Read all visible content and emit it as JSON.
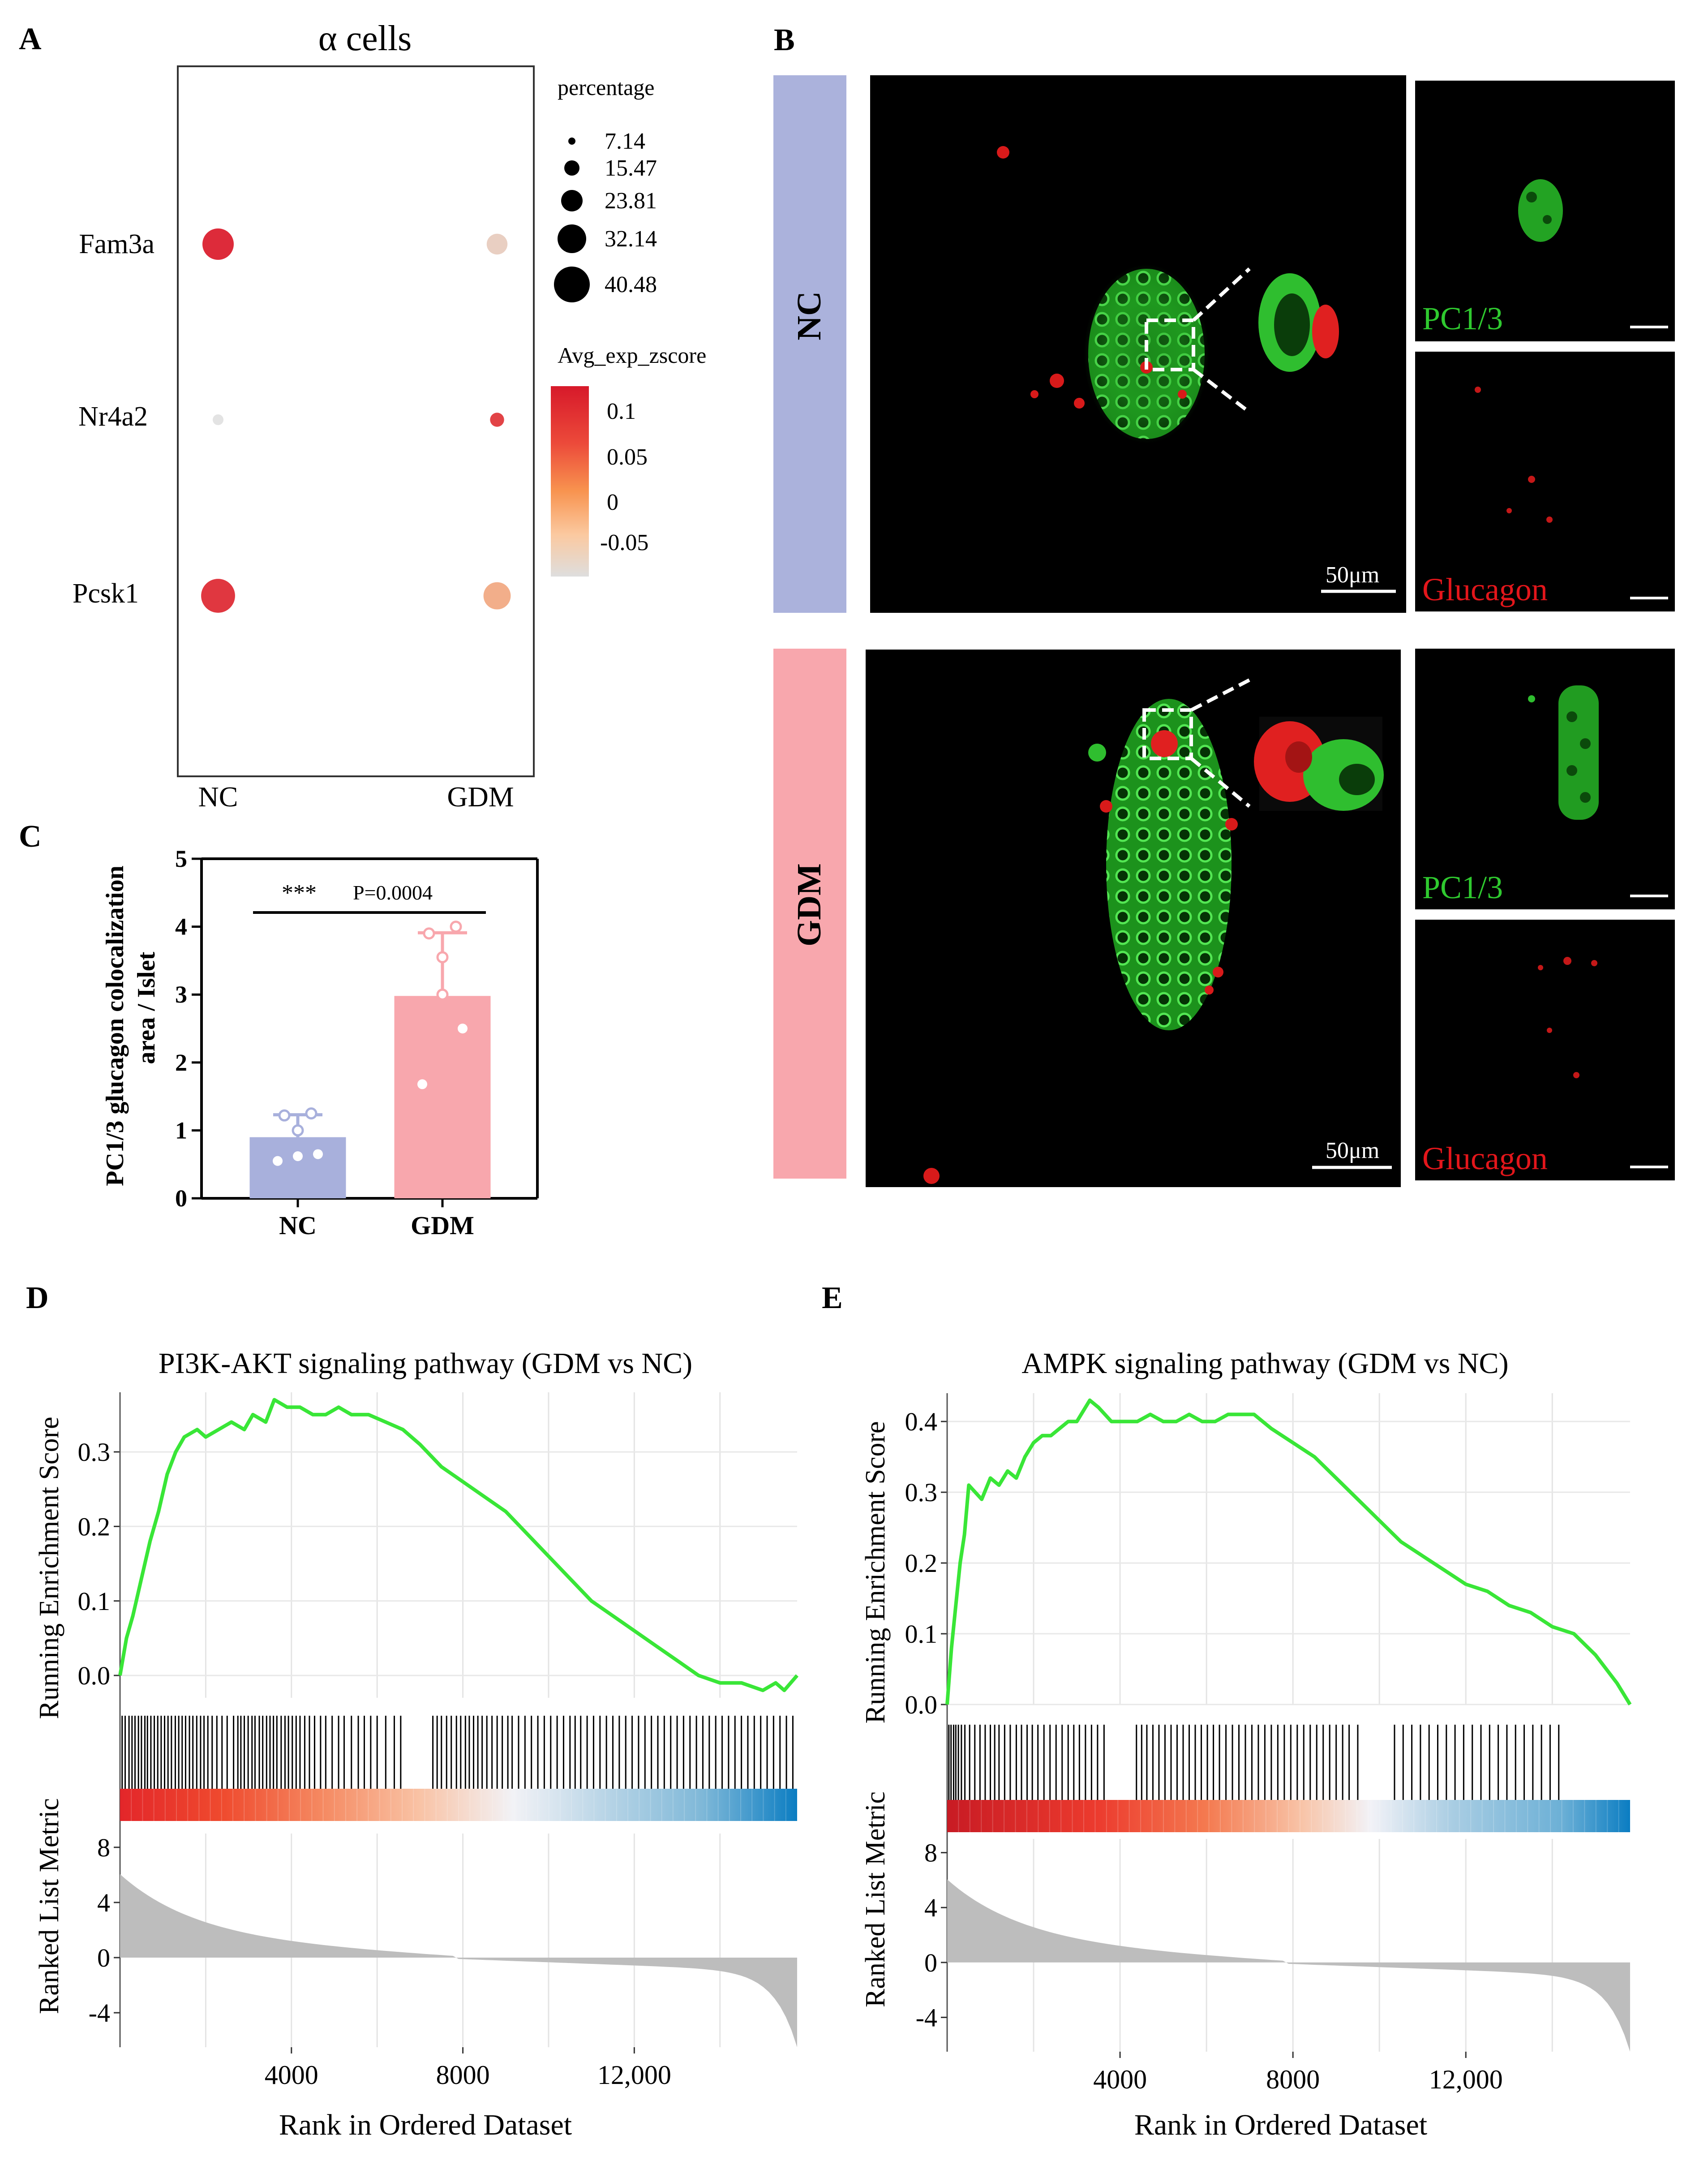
{
  "colors": {
    "dot_high": "#dd2b3a",
    "dot_mid": "#f6a174",
    "dot_low": "#e3e3e3",
    "nc_bar": "#a8b0dc",
    "gdm_bar": "#f8a7ad",
    "gsea_line": "#39e637",
    "green_stain": "#2fc92f",
    "red_stain": "#d81a1a",
    "heat_red": "#d7191c",
    "heat_blue": "#2b83ba"
  },
  "panelA": {
    "letter": "A",
    "title": "α cells",
    "genes": [
      "Fam3a",
      "Nr4a2",
      "Pcsk1"
    ],
    "groups": [
      "NC",
      "GDM"
    ],
    "dots": [
      {
        "gene": "Fam3a",
        "group": "NC",
        "percentage": 34.5,
        "zscore": 0.1
      },
      {
        "gene": "Fam3a",
        "group": "GDM",
        "percentage": 20.5,
        "zscore": -0.07
      },
      {
        "gene": "Nr4a2",
        "group": "NC",
        "percentage": 7.2,
        "zscore": -0.1
      },
      {
        "gene": "Nr4a2",
        "group": "GDM",
        "percentage": 11.5,
        "zscore": 0.08
      },
      {
        "gene": "Pcsk1",
        "group": "NC",
        "percentage": 38.0,
        "zscore": 0.09
      },
      {
        "gene": "Pcsk1",
        "group": "GDM",
        "percentage": 29.0,
        "zscore": -0.02
      }
    ],
    "size_legend_title": "percentage",
    "size_legend": [
      "7.14",
      "15.47",
      "23.81",
      "32.14",
      "40.48"
    ],
    "color_legend_title": "Avg_exp_zscore",
    "color_legend": [
      "0.1",
      "0.05",
      "0",
      "-0.05"
    ]
  },
  "panelB": {
    "letter": "B",
    "rows": [
      "NC",
      "GDM"
    ],
    "scale_bar": "50μm",
    "channel_green": "PC1/3",
    "channel_red": "Glucagon"
  },
  "chart_data": [
    {
      "panel": "C",
      "type": "bar",
      "categories": [
        "NC",
        "GDM"
      ],
      "values": [
        0.9,
        2.98
      ],
      "errors": [
        0.33,
        0.93
      ],
      "points": [
        [
          0.55,
          0.65,
          1.0,
          1.22,
          1.25,
          0.62
        ],
        [
          1.68,
          2.5,
          3.55,
          3.9,
          4.0,
          3.0
        ]
      ],
      "ylim": [
        0,
        5
      ],
      "yticks": [
        "0",
        "1",
        "2",
        "3",
        "4",
        "5"
      ],
      "ylabel_line1": "PC1/3 glucagon colocalization",
      "ylabel_line2": "area / Islet",
      "significance": "***",
      "p_value": "P=0.0004"
    },
    {
      "panel": "D",
      "type": "line",
      "title": "PI3K-AKT signaling pathway (GDM vs NC)",
      "ylabel": "Running  Enrichment  Score",
      "ylabel2": "Ranked  List Metric",
      "xlabel": "Rank in Ordered Dataset",
      "x_range": [
        0,
        15800
      ],
      "es_range": [
        -0.03,
        0.38
      ],
      "es_ticks": [
        "0.0",
        "0.1",
        "0.2",
        "0.3"
      ],
      "metric_range": [
        -6.5,
        9
      ],
      "metric_ticks": [
        "8",
        "4",
        "0",
        "-4"
      ],
      "x_ticks": [
        "4000",
        "8000",
        "12,000"
      ],
      "curve_x": [
        0,
        150,
        300,
        500,
        700,
        900,
        1100,
        1300,
        1500,
        1800,
        2000,
        2300,
        2600,
        2900,
        3100,
        3400,
        3600,
        3900,
        4200,
        4500,
        4800,
        5100,
        5400,
        5800,
        6200,
        6600,
        7000,
        7500,
        8000,
        8500,
        9000,
        9500,
        10000,
        10500,
        11000,
        11500,
        12000,
        12500,
        13000,
        13500,
        14000,
        14500,
        15000,
        15300,
        15500,
        15800
      ],
      "curve_y": [
        0.0,
        0.05,
        0.08,
        0.13,
        0.18,
        0.22,
        0.27,
        0.3,
        0.32,
        0.33,
        0.32,
        0.33,
        0.34,
        0.33,
        0.35,
        0.34,
        0.37,
        0.36,
        0.36,
        0.35,
        0.35,
        0.36,
        0.35,
        0.35,
        0.34,
        0.33,
        0.31,
        0.28,
        0.26,
        0.24,
        0.22,
        0.19,
        0.16,
        0.13,
        0.1,
        0.08,
        0.06,
        0.04,
        0.02,
        0.0,
        -0.01,
        -0.01,
        -0.02,
        -0.01,
        -0.02,
        0.0
      ],
      "hits": [
        50,
        120,
        210,
        280,
        350,
        430,
        500,
        580,
        640,
        720,
        800,
        880,
        960,
        1040,
        1120,
        1200,
        1290,
        1370,
        1450,
        1530,
        1620,
        1700,
        1790,
        1880,
        1960,
        2050,
        2150,
        2260,
        2380,
        2500,
        2650,
        2750,
        2820,
        2900,
        2990,
        3080,
        3150,
        3250,
        3330,
        3420,
        3500,
        3580,
        3660,
        3760,
        3850,
        3930,
        4020,
        4110,
        4200,
        4310,
        4420,
        4540,
        4680,
        4800,
        4950,
        5100,
        5230,
        5400,
        5560,
        5700,
        5850,
        6000,
        6200,
        6400,
        6550,
        7300,
        7400,
        7500,
        7620,
        7730,
        7850,
        7950,
        8060,
        8150,
        8250,
        8350,
        8450,
        8560,
        8680,
        8800,
        8920,
        9050,
        9150,
        9300,
        9450,
        9600,
        9750,
        9900,
        10050,
        10200,
        10350,
        10500,
        10620,
        10750,
        10900,
        11050,
        11200,
        11350,
        11500,
        11650,
        11800,
        11950,
        12100,
        12250,
        12400,
        12550,
        12700,
        12850,
        13000,
        13150,
        13300,
        13450,
        13600,
        13750,
        13900,
        14050,
        14200,
        14350,
        14500,
        14650,
        14800,
        14950,
        15100,
        15250,
        15400,
        15550,
        15700
      ]
    },
    {
      "panel": "E",
      "type": "line",
      "title": "AMPK signaling pathway (GDM vs NC)",
      "ylabel": "Running  Enrichment  Score",
      "ylabel2": "Ranked  List Metric",
      "xlabel": "Rank in Ordered Dataset",
      "x_range": [
        0,
        15800
      ],
      "es_range": [
        0,
        0.44
      ],
      "es_ticks": [
        "0.0",
        "0.1",
        "0.2",
        "0.3",
        "0.4"
      ],
      "metric_range": [
        -6.5,
        9
      ],
      "metric_ticks": [
        "8",
        "4",
        "0",
        "-4"
      ],
      "x_ticks": [
        "4000",
        "8000",
        "12,000"
      ],
      "curve_x": [
        0,
        100,
        200,
        300,
        400,
        500,
        650,
        800,
        1000,
        1200,
        1400,
        1600,
        1800,
        2000,
        2200,
        2400,
        2600,
        2800,
        3000,
        3300,
        3500,
        3800,
        4100,
        4400,
        4700,
        5000,
        5300,
        5600,
        5900,
        6200,
        6500,
        6800,
        7100,
        7500,
        8000,
        8500,
        9000,
        9500,
        10000,
        10500,
        11000,
        11500,
        12000,
        12500,
        13000,
        13500,
        14000,
        14500,
        15000,
        15500,
        15800
      ],
      "curve_y": [
        0.0,
        0.08,
        0.14,
        0.2,
        0.24,
        0.31,
        0.3,
        0.29,
        0.32,
        0.31,
        0.33,
        0.32,
        0.35,
        0.37,
        0.38,
        0.38,
        0.39,
        0.4,
        0.4,
        0.43,
        0.42,
        0.4,
        0.4,
        0.4,
        0.41,
        0.4,
        0.4,
        0.41,
        0.4,
        0.4,
        0.41,
        0.41,
        0.41,
        0.39,
        0.37,
        0.35,
        0.32,
        0.29,
        0.26,
        0.23,
        0.21,
        0.19,
        0.17,
        0.16,
        0.14,
        0.13,
        0.11,
        0.1,
        0.07,
        0.03,
        0.0
      ],
      "hits": [
        40,
        90,
        150,
        200,
        260,
        330,
        410,
        520,
        640,
        760,
        880,
        1000,
        1100,
        1200,
        1330,
        1460,
        1600,
        1720,
        1850,
        1970,
        2100,
        2240,
        2380,
        2520,
        2660,
        2800,
        2930,
        3060,
        3200,
        3340,
        3480,
        3630,
        4380,
        4500,
        4620,
        4760,
        4900,
        5040,
        5180,
        5320,
        5460,
        5600,
        5740,
        5880,
        6020,
        6160,
        6300,
        6450,
        6600,
        6750,
        6900,
        7050,
        7200,
        7350,
        7500,
        7650,
        7800,
        7950,
        8100,
        8250,
        8400,
        8550,
        8700,
        8850,
        9000,
        9150,
        9300,
        9500,
        10350,
        10550,
        10750,
        10950,
        11150,
        11350,
        11550,
        11750,
        11950,
        12150,
        12350,
        12550,
        12750,
        12950,
        13150,
        13350,
        13550,
        13750,
        13950,
        14150
      ]
    }
  ]
}
